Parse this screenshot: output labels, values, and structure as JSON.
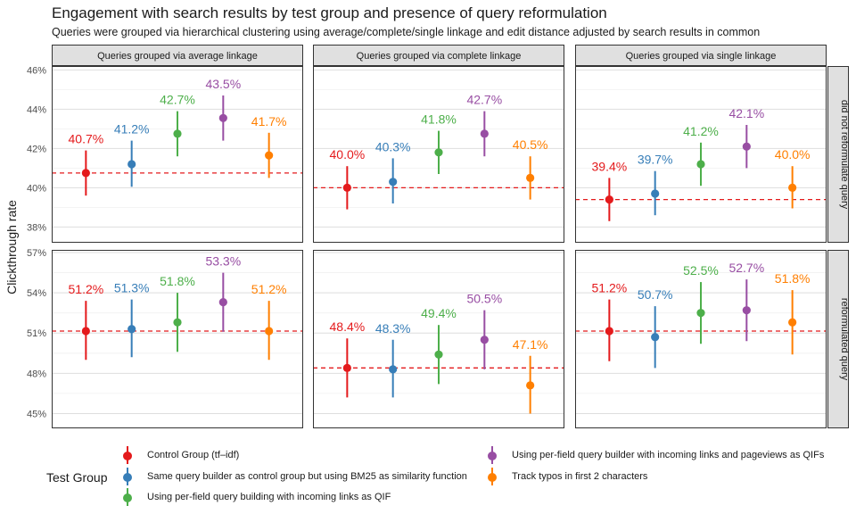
{
  "title": "Engagement with search results by test group and presence of query reformulation",
  "subtitle": "Queries were grouped via hierarchical clustering using average/complete/single linkage and edit distance adjusted by search results in common",
  "chart_data": {
    "type": "pointrange",
    "ylabel": "Clickthrough rate",
    "facet_columns": [
      "Queries grouped via average linkage",
      "Queries grouped via complete linkage",
      "Queries grouped via single linkage"
    ],
    "facet_rows": [
      "did not reformulate query",
      "reformulated query"
    ],
    "row_axes": [
      {
        "ylim": [
          37.2,
          46.2
        ],
        "ticks": [
          38,
          40,
          42,
          44,
          46
        ],
        "tick_labels": [
          "38%",
          "40%",
          "42%",
          "44%",
          "46%"
        ]
      },
      {
        "ylim": [
          43.9,
          57.2
        ],
        "ticks": [
          45,
          48,
          51,
          54,
          57
        ],
        "tick_labels": [
          "45%",
          "48%",
          "51%",
          "54%",
          "57%"
        ]
      }
    ],
    "groups": [
      {
        "name": "Control Group (tf–idf)",
        "color": "#E41A1C"
      },
      {
        "name": "Same query builder as control group but using BM25 as similarity function",
        "color": "#377EB8"
      },
      {
        "name": "Using per-field query building with incoming links as QIF",
        "color": "#4DAF4A"
      },
      {
        "name": "Using per-field query builder with incoming links and pageviews as QIFs",
        "color": "#984EA3"
      },
      {
        "name": "Track typos in first 2 characters",
        "color": "#FF7F00"
      }
    ],
    "reference_line": "Control Group estimate (dashed red line)",
    "panels": [
      {
        "row": 0,
        "col": 0,
        "baseline": 40.75,
        "points": [
          {
            "value": 40.75,
            "lower": 39.6,
            "upper": 41.9,
            "label": "40.7%"
          },
          {
            "value": 41.2,
            "lower": 40.05,
            "upper": 42.4,
            "label": "41.2%"
          },
          {
            "value": 42.75,
            "lower": 41.6,
            "upper": 43.9,
            "label": "42.7%"
          },
          {
            "value": 43.55,
            "lower": 42.4,
            "upper": 44.7,
            "label": "43.5%"
          },
          {
            "value": 41.65,
            "lower": 40.5,
            "upper": 42.8,
            "label": "41.7%"
          }
        ]
      },
      {
        "row": 0,
        "col": 1,
        "baseline": 40.0,
        "points": [
          {
            "value": 40.0,
            "lower": 38.9,
            "upper": 41.1,
            "label": "40.0%"
          },
          {
            "value": 40.3,
            "lower": 39.2,
            "upper": 41.5,
            "label": "40.3%"
          },
          {
            "value": 41.8,
            "lower": 40.7,
            "upper": 42.9,
            "label": "41.8%"
          },
          {
            "value": 42.75,
            "lower": 41.6,
            "upper": 43.9,
            "label": "42.7%"
          },
          {
            "value": 40.5,
            "lower": 39.4,
            "upper": 41.6,
            "label": "40.5%"
          }
        ]
      },
      {
        "row": 0,
        "col": 2,
        "baseline": 39.4,
        "points": [
          {
            "value": 39.4,
            "lower": 38.3,
            "upper": 40.5,
            "label": "39.4%"
          },
          {
            "value": 39.7,
            "lower": 38.6,
            "upper": 40.85,
            "label": "39.7%"
          },
          {
            "value": 41.2,
            "lower": 40.1,
            "upper": 42.3,
            "label": "41.2%"
          },
          {
            "value": 42.1,
            "lower": 41.0,
            "upper": 43.2,
            "label": "42.1%"
          },
          {
            "value": 40.0,
            "lower": 38.95,
            "upper": 41.1,
            "label": "40.0%"
          }
        ]
      },
      {
        "row": 1,
        "col": 0,
        "baseline": 51.15,
        "points": [
          {
            "value": 51.15,
            "lower": 49.0,
            "upper": 53.4,
            "label": "51.2%"
          },
          {
            "value": 51.3,
            "lower": 49.2,
            "upper": 53.5,
            "label": "51.3%"
          },
          {
            "value": 51.8,
            "lower": 49.6,
            "upper": 54.0,
            "label": "51.8%"
          },
          {
            "value": 53.3,
            "lower": 51.1,
            "upper": 55.5,
            "label": "53.3%"
          },
          {
            "value": 51.15,
            "lower": 49.0,
            "upper": 53.4,
            "label": "51.2%"
          }
        ]
      },
      {
        "row": 1,
        "col": 1,
        "baseline": 48.4,
        "points": [
          {
            "value": 48.4,
            "lower": 46.2,
            "upper": 50.6,
            "label": "48.4%"
          },
          {
            "value": 48.3,
            "lower": 46.2,
            "upper": 50.5,
            "label": "48.3%"
          },
          {
            "value": 49.4,
            "lower": 47.2,
            "upper": 51.6,
            "label": "49.4%"
          },
          {
            "value": 50.5,
            "lower": 48.3,
            "upper": 52.7,
            "label": "50.5%"
          },
          {
            "value": 47.1,
            "lower": 45.0,
            "upper": 49.3,
            "label": "47.1%"
          }
        ]
      },
      {
        "row": 1,
        "col": 2,
        "baseline": 51.15,
        "points": [
          {
            "value": 51.15,
            "lower": 48.9,
            "upper": 53.5,
            "label": "51.2%"
          },
          {
            "value": 50.7,
            "lower": 48.4,
            "upper": 53.0,
            "label": "50.7%"
          },
          {
            "value": 52.5,
            "lower": 50.2,
            "upper": 54.8,
            "label": "52.5%"
          },
          {
            "value": 52.7,
            "lower": 50.4,
            "upper": 55.0,
            "label": "52.7%"
          },
          {
            "value": 51.8,
            "lower": 49.4,
            "upper": 54.2,
            "label": "51.8%"
          }
        ]
      }
    ],
    "grid": true,
    "legend_placement": "bottom"
  },
  "legend": {
    "title": "Test Group",
    "items": [
      "Control Group (tf–idf)",
      "Same query builder as control group but using BM25 as similarity function",
      "Using per-field query building with incoming links as QIF",
      "Using per-field query builder with incoming links and pageviews as QIFs",
      "Track typos in first 2 characters"
    ]
  }
}
